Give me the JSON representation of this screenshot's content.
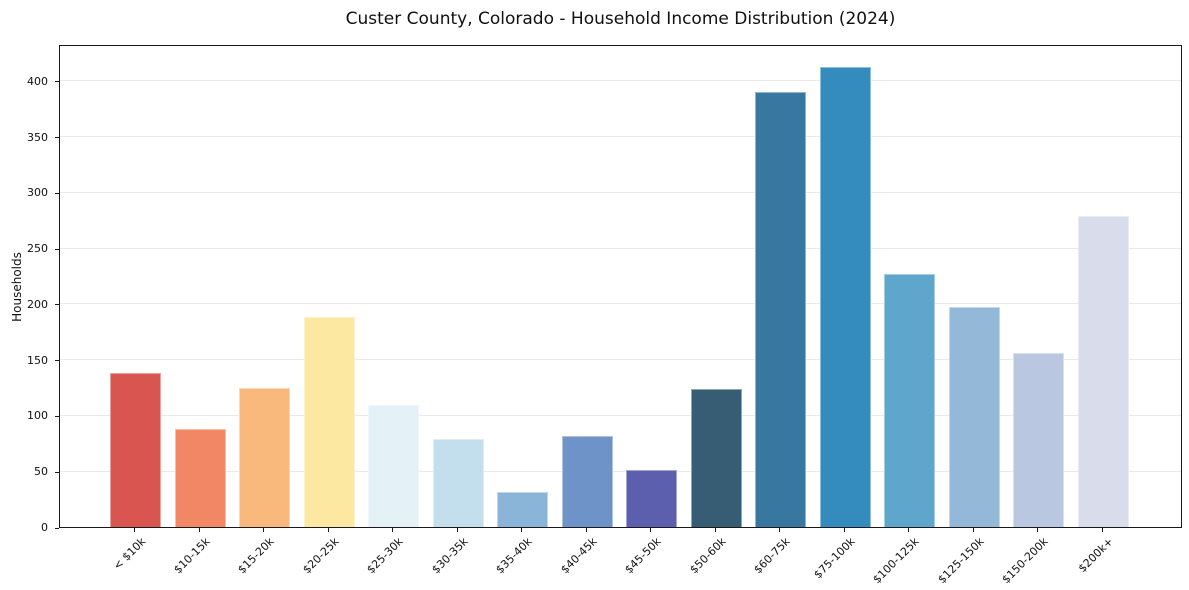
{
  "figure": {
    "title": "Custer County, Colorado - Household Income Distribution (2024)"
  },
  "chart_data": {
    "type": "bar",
    "title": "Custer County, Colorado - Household Income Distribution (2024)",
    "xlabel": "",
    "ylabel": "Households",
    "categories": [
      "< $10k",
      "$10-15k",
      "$15-20k",
      "$20-25k",
      "$25-30k",
      "$30-35k",
      "$35-40k",
      "$40-45k",
      "$45-50k",
      "$50-60k",
      "$60-75k",
      "$75-100k",
      "$100-125k",
      "$125-150k",
      "$150-200k",
      "$200k+"
    ],
    "values": [
      138,
      88,
      125,
      188,
      109,
      79,
      31,
      82,
      51,
      124,
      390,
      412,
      227,
      197,
      156,
      279
    ],
    "bar_colors": [
      "#d8564f",
      "#f28766",
      "#fab97c",
      "#fde8a2",
      "#e4f1f6",
      "#c3dfee",
      "#8ab5d8",
      "#6d93c8",
      "#5c5fae",
      "#365d73",
      "#3878a0",
      "#348cbe",
      "#5ea6cb",
      "#93b8d8",
      "#b9c8e0",
      "#d9dcea"
    ],
    "yticks": [
      0,
      50,
      100,
      150,
      200,
      250,
      300,
      350,
      400
    ],
    "ylim": [
      0,
      433
    ],
    "grid": true,
    "grid_axis": "y",
    "legend": false,
    "plain_style_notes": {
      "gridline_color": "#e9e9ec",
      "axis_box_color": "#1a1a1a",
      "xtick_label_rotation_deg": 45
    }
  }
}
